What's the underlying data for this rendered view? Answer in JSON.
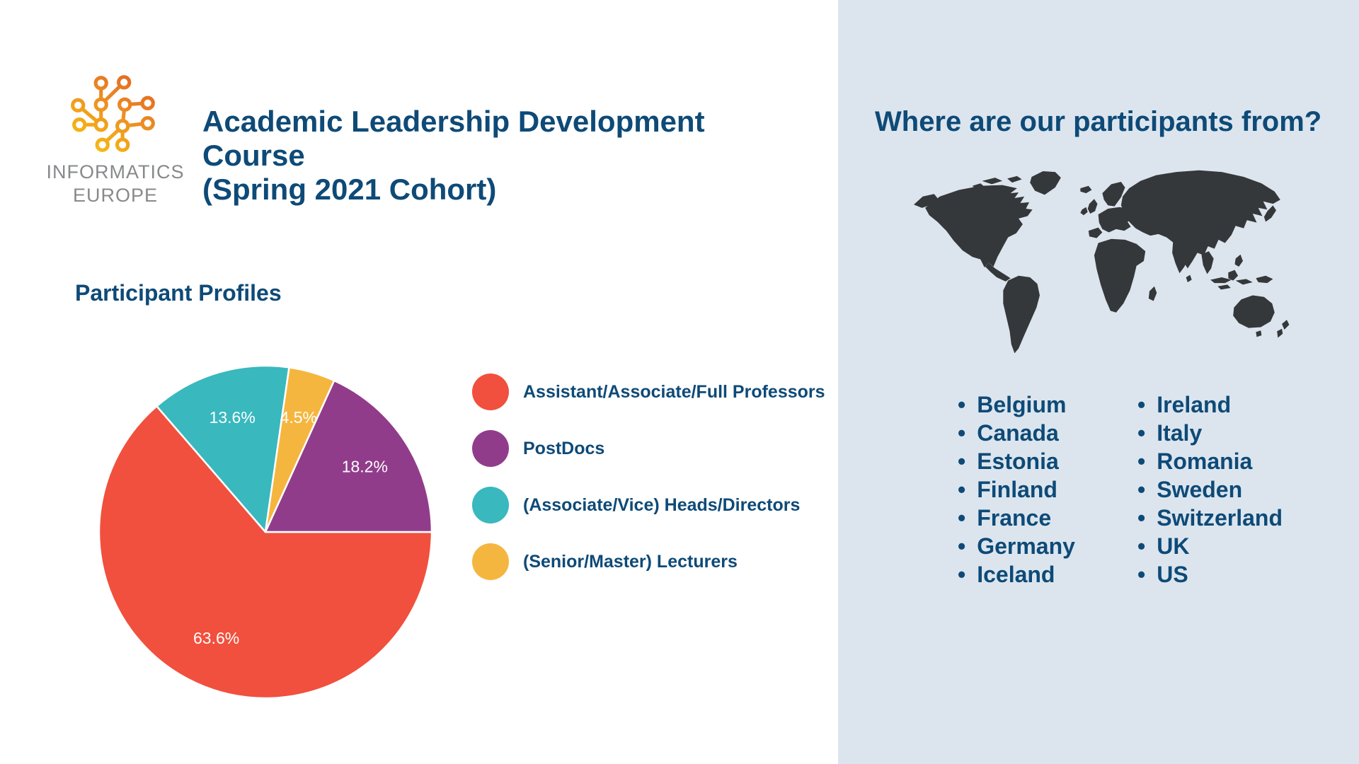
{
  "logo": {
    "line1": "INFORMATICS",
    "line2": "EUROPE",
    "gradient": [
      "#E05E24",
      "#EE9222",
      "#F8C40E"
    ]
  },
  "header": {
    "title_line1": "Academic Leadership Development Course",
    "title_line2": "(Spring 2021 Cohort)"
  },
  "pie_section": {
    "heading": "Participant Profiles"
  },
  "chart_data": {
    "type": "pie",
    "title": "Participant Profiles",
    "unit": "%",
    "slices": [
      {
        "label": "Assistant/Associate/Full Professors",
        "value": 63.6,
        "display": "63.6%",
        "color": "#F0503D"
      },
      {
        "label": "PostDocs",
        "value": 18.2,
        "display": "18.2%",
        "color": "#913C8B"
      },
      {
        "label": "(Associate/Vice) Heads/Directors",
        "value": 13.6,
        "display": "13.6%",
        "color": "#39B8BE"
      },
      {
        "label": "(Senior/Master) Lecturers",
        "value": 4.5,
        "display": "4.5%",
        "color": "#F5B63F"
      }
    ],
    "draw_order_clockwise_from_east": [
      0,
      2,
      3,
      1
    ],
    "start_angle_deg": 0,
    "direction": "clockwise",
    "slice_label_color": "#FFFFFF",
    "legend_position": "right-of-chart"
  },
  "map_panel": {
    "heading": "Where are our participants from?",
    "bullet_char": "•",
    "countries_col1": [
      "Belgium",
      "Canada",
      "Estonia",
      "Finland",
      "France",
      "Germany",
      "Iceland"
    ],
    "countries_col2": [
      "Ireland",
      "Italy",
      "Romania",
      "Sweden",
      "Switzerland",
      "UK",
      "US"
    ]
  },
  "colors": {
    "page_bg": "#FFFFFF",
    "panel_bg": "#DCE5EE",
    "heading_text": "#0E4A77",
    "map_fill": "#35383A",
    "logo_text": "#87898B"
  }
}
